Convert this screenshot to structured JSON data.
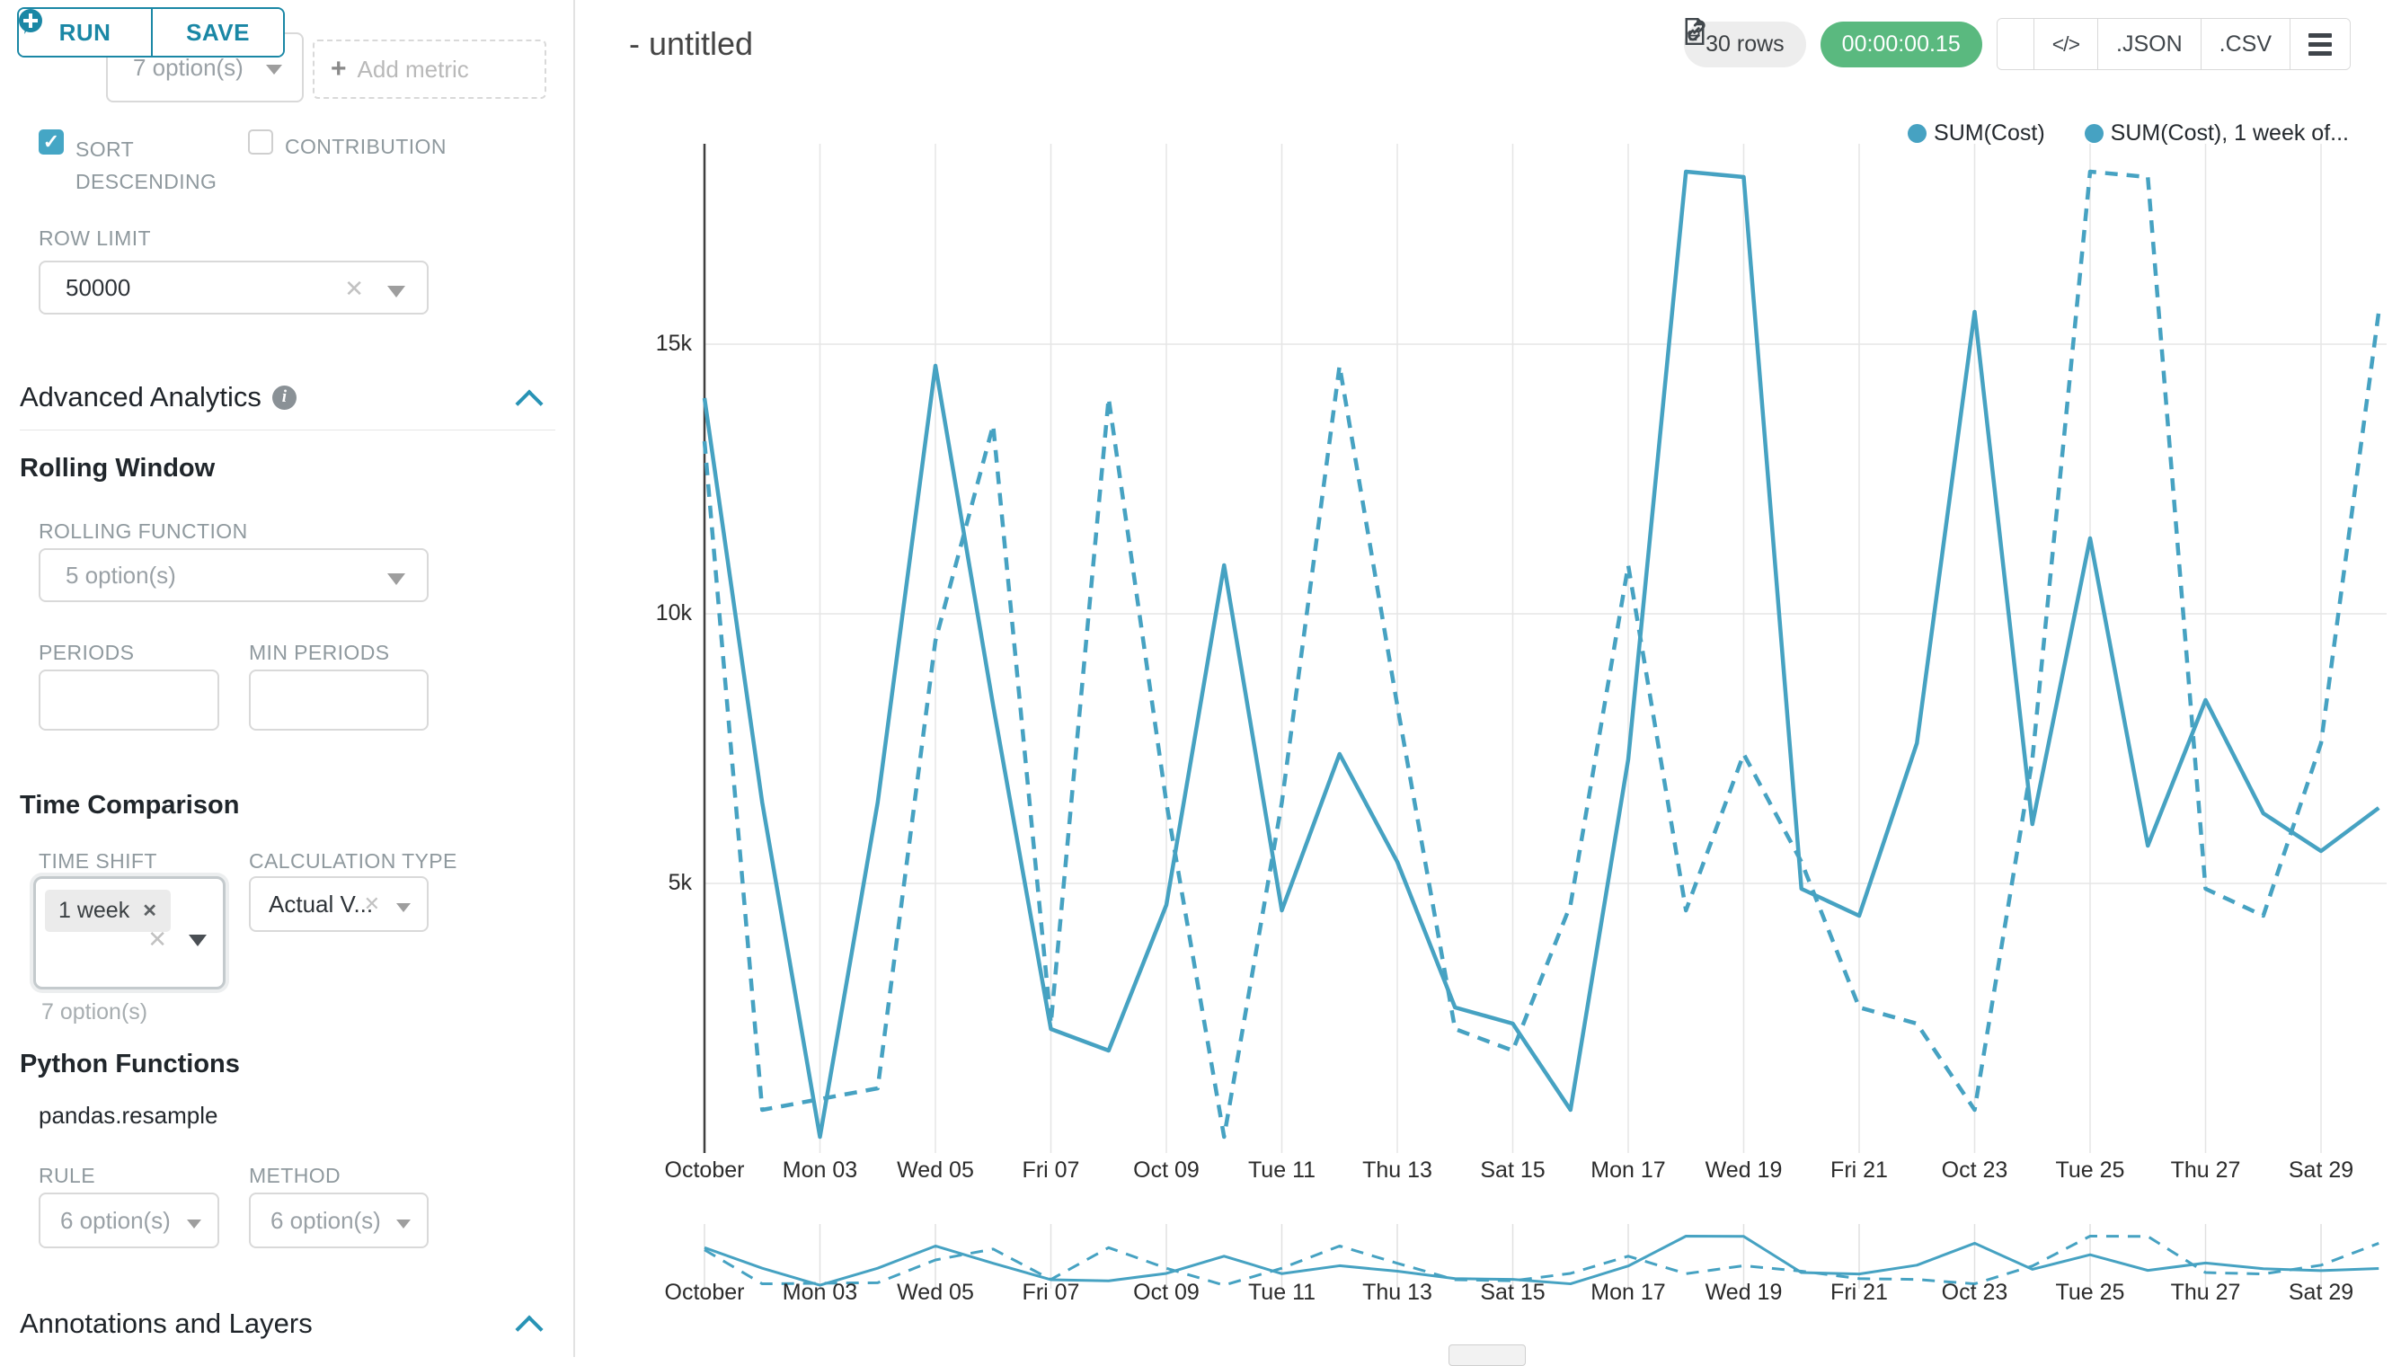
{
  "colors": {
    "accent": "#46a2c2",
    "teal_button": "#1a87a5",
    "timer_green": "#5ab97f",
    "badge_gray": "#ededed"
  },
  "query_panel": {
    "run_label": "RUN",
    "save_label": "SAVE",
    "groupby_value": "7 option(s)",
    "add_metric_label": "Add metric",
    "sort_descending_label": "SORT DESCENDING",
    "contribution_label": "CONTRIBUTION",
    "row_limit_label": "ROW LIMIT",
    "row_limit_value": "50000"
  },
  "advanced_analytics": {
    "title": "Advanced Analytics",
    "rolling_window": {
      "title": "Rolling Window",
      "rolling_function_label": "ROLLING FUNCTION",
      "rolling_function_value": "5 option(s)",
      "periods_label": "PERIODS",
      "min_periods_label": "MIN PERIODS"
    },
    "time_comparison": {
      "title": "Time Comparison",
      "time_shift_label": "TIME SHIFT",
      "time_shift_chip": "1 week",
      "time_shift_hint": "7 option(s)",
      "calculation_type_label": "CALCULATION TYPE",
      "calculation_type_value": "Actual V..."
    },
    "python_functions": {
      "title": "Python Functions",
      "function_name": "pandas.resample",
      "rule_label": "RULE",
      "rule_value": "6 option(s)",
      "method_label": "METHOD",
      "method_value": "6 option(s)"
    },
    "annotations_title": "Annotations and Layers"
  },
  "header": {
    "title": "- untitled",
    "rows_badge": "30 rows",
    "timer": "00:00:00.15",
    "json_label": ".JSON",
    "csv_label": ".CSV"
  },
  "chart_data": {
    "type": "line",
    "title": "",
    "xlabel": "",
    "ylabel": "",
    "x": [
      "Oct 01",
      "Oct 02",
      "Oct 03",
      "Oct 04",
      "Oct 05",
      "Oct 06",
      "Oct 07",
      "Oct 08",
      "Oct 09",
      "Oct 10",
      "Oct 11",
      "Oct 12",
      "Oct 13",
      "Oct 14",
      "Oct 15",
      "Oct 16",
      "Oct 17",
      "Oct 18",
      "Oct 19",
      "Oct 20",
      "Oct 21",
      "Oct 22",
      "Oct 23",
      "Oct 24",
      "Oct 25",
      "Oct 26",
      "Oct 27",
      "Oct 28",
      "Oct 29",
      "Oct 30"
    ],
    "x_tick_labels": [
      "October",
      "Mon 03",
      "Wed 05",
      "Fri 07",
      "Oct 09",
      "Tue 11",
      "Thu 13",
      "Sat 15",
      "Mon 17",
      "Wed 19",
      "Fri 21",
      "Oct 23",
      "Tue 25",
      "Thu 27",
      "Sat 29"
    ],
    "y_tick_labels": [
      "5k",
      "10k",
      "15k"
    ],
    "y_tick_values": [
      5000,
      10000,
      15000
    ],
    "ylim": [
      0,
      18700
    ],
    "grid": true,
    "legend_position": "top-right",
    "series": [
      {
        "name": "SUM(Cost)",
        "style": "solid",
        "values": [
          14000,
          6500,
          300,
          6500,
          14600,
          8300,
          2300,
          1900,
          4600,
          10900,
          4500,
          7400,
          5400,
          2700,
          2400,
          800,
          7300,
          18200,
          18100,
          4900,
          4400,
          7600,
          15600,
          6100,
          11400,
          5700,
          8400,
          6300,
          5600,
          6400
        ]
      },
      {
        "name": "SUM(Cost), 1 week of...",
        "style": "dashed",
        "values": [
          13200,
          800,
          1000,
          1200,
          9500,
          13500,
          2400,
          14000,
          6500,
          300,
          6500,
          14600,
          8300,
          2300,
          1900,
          4600,
          10900,
          4500,
          7400,
          5400,
          2700,
          2400,
          800,
          7300,
          18200,
          18100,
          4900,
          4400,
          7600,
          15600
        ]
      }
    ]
  }
}
